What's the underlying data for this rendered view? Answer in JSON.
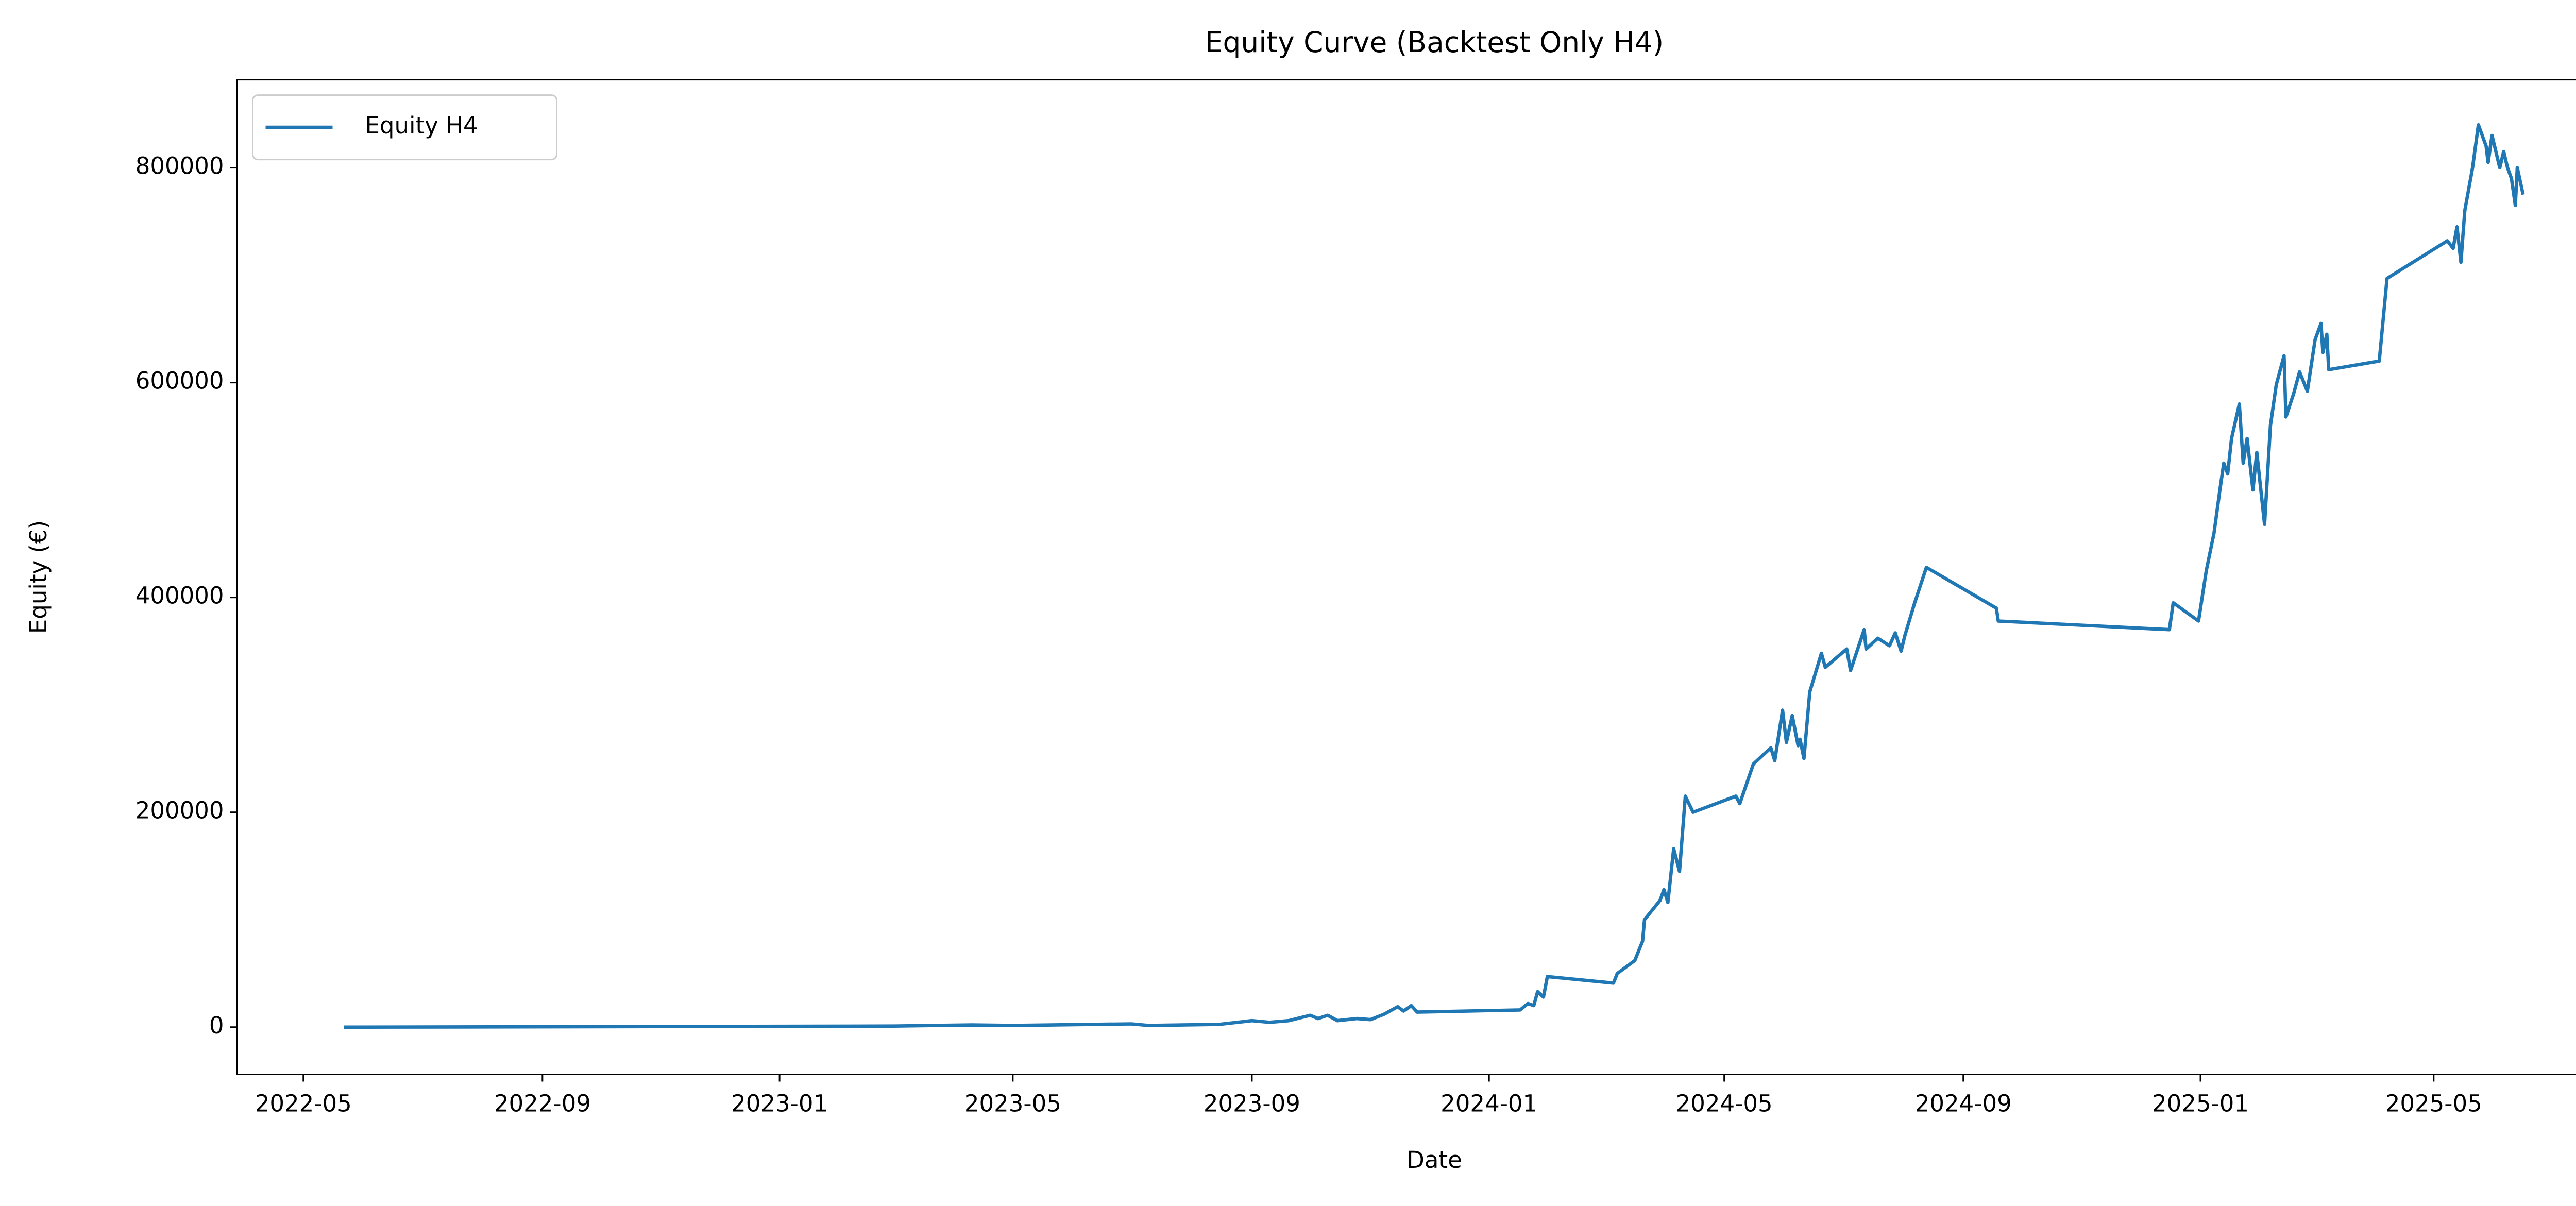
{
  "chart_data": {
    "type": "line",
    "title": "Equity Curve (Backtest Only H4)",
    "xlabel": "Date",
    "ylabel": "Equity (€)",
    "legend": "upper left",
    "grid": false,
    "xlim": [
      "2022-03-28",
      "2025-08-11"
    ],
    "xticks": [
      "2022-05",
      "2022-09",
      "2023-01",
      "2023-05",
      "2023-09",
      "2024-01",
      "2024-05",
      "2024-09",
      "2025-01",
      "2025-05"
    ],
    "ylim": [
      -44000,
      882000
    ],
    "yticks": [
      0,
      200000,
      400000,
      600000,
      800000
    ],
    "x": [
      "2022-05-22",
      "2022-11-01",
      "2023-03-01",
      "2023-04-10",
      "2023-05-01",
      "2023-07-01",
      "2023-07-10",
      "2023-08-15",
      "2023-09-01",
      "2023-09-10",
      "2023-09-20",
      "2023-10-01",
      "2023-10-05",
      "2023-10-10",
      "2023-10-15",
      "2023-10-25",
      "2023-11-01",
      "2023-11-08",
      "2023-11-15",
      "2023-11-18",
      "2023-11-22",
      "2023-11-25",
      "2024-01-17",
      "2024-01-21",
      "2024-01-24",
      "2024-01-26",
      "2024-01-29",
      "2024-01-31",
      "2024-03-05",
      "2024-03-07",
      "2024-03-16",
      "2024-03-20",
      "2024-03-21",
      "2024-03-29",
      "2024-03-31",
      "2024-04-02",
      "2024-04-05",
      "2024-04-08",
      "2024-04-11",
      "2024-04-15",
      "2024-05-07",
      "2024-05-09",
      "2024-05-16",
      "2024-05-25",
      "2024-05-27",
      "2024-05-31",
      "2024-06-02",
      "2024-06-05",
      "2024-06-08",
      "2024-06-09",
      "2024-06-11",
      "2024-06-14",
      "2024-06-20",
      "2024-06-22",
      "2024-07-03",
      "2024-07-05",
      "2024-07-12",
      "2024-07-13",
      "2024-07-19",
      "2024-07-25",
      "2024-07-28",
      "2024-07-31",
      "2024-08-02",
      "2024-08-07",
      "2024-08-13",
      "2024-09-18",
      "2024-09-19",
      "2024-12-16",
      "2024-12-18",
      "2024-12-31",
      "2025-01-04",
      "2025-01-08",
      "2025-01-11",
      "2025-01-13",
      "2025-01-15",
      "2025-01-17",
      "2025-01-21",
      "2025-01-23",
      "2025-01-25",
      "2025-01-28",
      "2025-01-30",
      "2025-02-03",
      "2025-02-06",
      "2025-02-09",
      "2025-02-13",
      "2025-02-14",
      "2025-02-18",
      "2025-02-21",
      "2025-02-25",
      "2025-03-01",
      "2025-03-04",
      "2025-03-05",
      "2025-03-07",
      "2025-03-08",
      "2025-04-03",
      "2025-04-07",
      "2025-05-08",
      "2025-05-11",
      "2025-05-13",
      "2025-05-15",
      "2025-05-17",
      "2025-05-21",
      "2025-05-24",
      "2025-05-28",
      "2025-05-29",
      "2025-05-31",
      "2025-06-02",
      "2025-06-04",
      "2025-06-06",
      "2025-06-08",
      "2025-06-10",
      "2025-06-12",
      "2025-06-13",
      "2025-06-16"
    ],
    "series": [
      {
        "name": "Equity H4",
        "color": "#1f77b4",
        "values": [
          0,
          500,
          1000,
          2000,
          1500,
          3000,
          1500,
          2500,
          6000,
          4500,
          6000,
          11000,
          8000,
          11000,
          6000,
          8000,
          7000,
          12000,
          19000,
          15000,
          20000,
          14000,
          16000,
          22000,
          20000,
          33000,
          28000,
          47000,
          41000,
          50000,
          62000,
          80000,
          100000,
          118000,
          128000,
          116000,
          166000,
          145000,
          215000,
          200000,
          215000,
          208000,
          245000,
          260000,
          248000,
          295000,
          265000,
          290000,
          262000,
          268000,
          250000,
          312000,
          348000,
          335000,
          352000,
          332000,
          370000,
          352000,
          362000,
          355000,
          367000,
          350000,
          365000,
          395000,
          428000,
          390000,
          378000,
          370000,
          395000,
          378000,
          425000,
          460000,
          500000,
          525000,
          515000,
          548000,
          580000,
          525000,
          548000,
          500000,
          535000,
          468000,
          560000,
          598000,
          625000,
          568000,
          590000,
          610000,
          592000,
          640000,
          655000,
          628000,
          645000,
          612000,
          620000,
          697000,
          732000,
          725000,
          745000,
          712000,
          760000,
          800000,
          840000,
          820000,
          805000,
          830000,
          815000,
          800000,
          815000,
          800000,
          790000,
          765000,
          800000,
          775000
        ]
      }
    ]
  }
}
